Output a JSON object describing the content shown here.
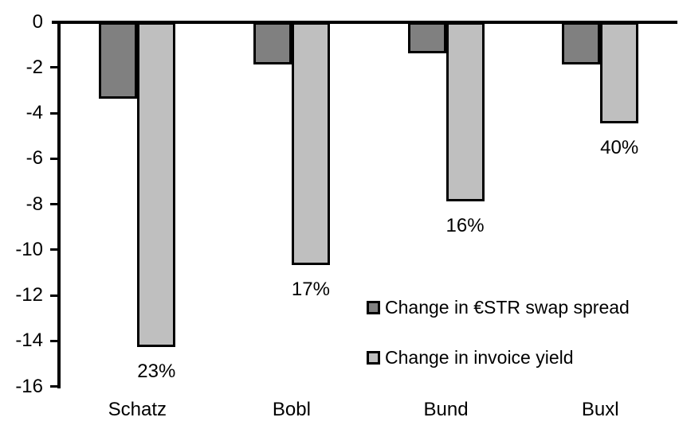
{
  "chart_data": {
    "type": "bar",
    "title": "",
    "xlabel": "",
    "ylabel": "",
    "categories": [
      "Schatz",
      "Bobl",
      "Bund",
      "Buxl"
    ],
    "series": [
      {
        "name": "Change in €STR swap spread",
        "color": "#808080",
        "values": [
          -3.3,
          -1.8,
          -1.3,
          -1.8
        ]
      },
      {
        "name": "Change in invoice yield",
        "color": "#BFBFBF",
        "values": [
          -14.2,
          -10.6,
          -7.8,
          -4.4
        ]
      }
    ],
    "data_labels": [
      "23%",
      "17%",
      "16%",
      "40%"
    ],
    "data_labels_on_series": "Change in invoice yield",
    "y_ticks": [
      "0",
      "-2",
      "-4",
      "-6",
      "-8",
      "-10",
      "-12",
      "-14",
      "-16"
    ],
    "ylim": [
      -16,
      0
    ],
    "grid": false,
    "legend_position": "inside-right-middle",
    "axis_color": "#000000",
    "background_color": "#FFFFFF"
  }
}
